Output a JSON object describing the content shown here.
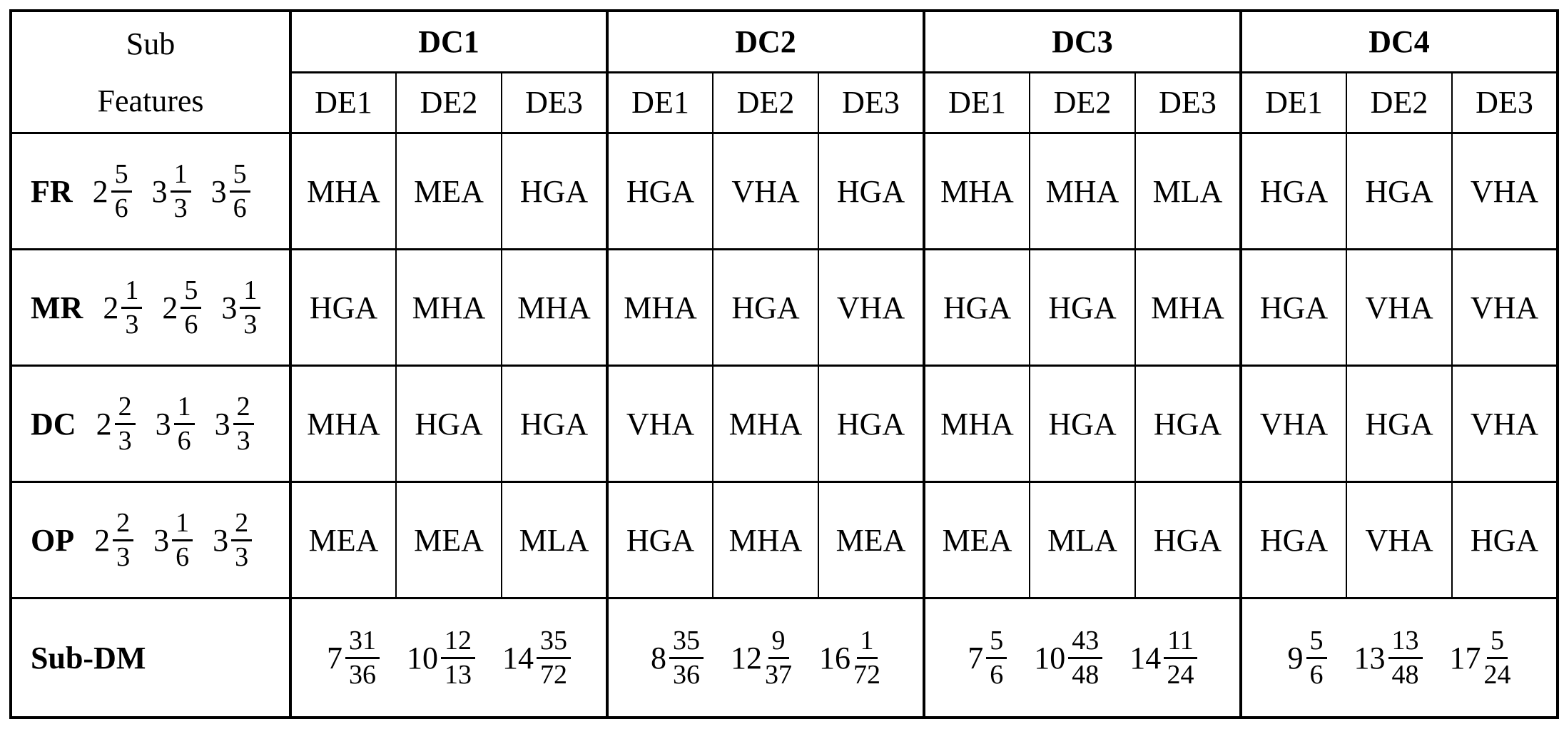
{
  "colors": {
    "border": "#000000",
    "background": "#ffffff",
    "text": "#000000"
  },
  "table": {
    "corner": {
      "line1": "Sub",
      "line2": "Features"
    },
    "groups": [
      {
        "label": "DC1",
        "subcols": [
          "DE1",
          "DE2",
          "DE3"
        ]
      },
      {
        "label": "DC2",
        "subcols": [
          "DE1",
          "DE2",
          "DE3"
        ]
      },
      {
        "label": "DC3",
        "subcols": [
          "DE1",
          "DE2",
          "DE3"
        ]
      },
      {
        "label": "DC4",
        "subcols": [
          "DE1",
          "DE2",
          "DE3"
        ]
      }
    ],
    "rows": [
      {
        "feature": "FR",
        "weights": [
          {
            "whole": "2",
            "num": "5",
            "den": "6"
          },
          {
            "whole": "3",
            "num": "1",
            "den": "3"
          },
          {
            "whole": "3",
            "num": "5",
            "den": "6"
          }
        ],
        "cells": [
          "MHA",
          "MEA",
          "HGA",
          "HGA",
          "VHA",
          "HGA",
          "MHA",
          "MHA",
          "MLA",
          "HGA",
          "HGA",
          "VHA"
        ]
      },
      {
        "feature": "MR",
        "weights": [
          {
            "whole": "2",
            "num": "1",
            "den": "3"
          },
          {
            "whole": "2",
            "num": "5",
            "den": "6"
          },
          {
            "whole": "3",
            "num": "1",
            "den": "3"
          }
        ],
        "cells": [
          "HGA",
          "MHA",
          "MHA",
          "MHA",
          "HGA",
          "VHA",
          "HGA",
          "HGA",
          "MHA",
          "HGA",
          "VHA",
          "VHA"
        ]
      },
      {
        "feature": "DC",
        "weights": [
          {
            "whole": "2",
            "num": "2",
            "den": "3"
          },
          {
            "whole": "3",
            "num": "1",
            "den": "6"
          },
          {
            "whole": "3",
            "num": "2",
            "den": "3"
          }
        ],
        "cells": [
          "MHA",
          "HGA",
          "HGA",
          "VHA",
          "MHA",
          "HGA",
          "MHA",
          "HGA",
          "HGA",
          "VHA",
          "HGA",
          "VHA"
        ]
      },
      {
        "feature": "OP",
        "weights": [
          {
            "whole": "2",
            "num": "2",
            "den": "3"
          },
          {
            "whole": "3",
            "num": "1",
            "den": "6"
          },
          {
            "whole": "3",
            "num": "2",
            "den": "3"
          }
        ],
        "cells": [
          "MEA",
          "MEA",
          "MLA",
          "HGA",
          "MHA",
          "MEA",
          "MEA",
          "MLA",
          "HGA",
          "HGA",
          "VHA",
          "HGA"
        ]
      }
    ],
    "footer": {
      "label": "Sub-DM",
      "values": [
        [
          {
            "whole": "7",
            "num": "31",
            "den": "36"
          },
          {
            "whole": "10",
            "num": "12",
            "den": "13"
          },
          {
            "whole": "14",
            "num": "35",
            "den": "72"
          }
        ],
        [
          {
            "whole": "8",
            "num": "35",
            "den": "36"
          },
          {
            "whole": "12",
            "num": "9",
            "den": "37"
          },
          {
            "whole": "16",
            "num": "1",
            "den": "72"
          }
        ],
        [
          {
            "whole": "7",
            "num": "5",
            "den": "6"
          },
          {
            "whole": "10",
            "num": "43",
            "den": "48"
          },
          {
            "whole": "14",
            "num": "11",
            "den": "24"
          }
        ],
        [
          {
            "whole": "9",
            "num": "5",
            "den": "6"
          },
          {
            "whole": "13",
            "num": "13",
            "den": "48"
          },
          {
            "whole": "17",
            "num": "5",
            "den": "24"
          }
        ]
      ]
    }
  }
}
